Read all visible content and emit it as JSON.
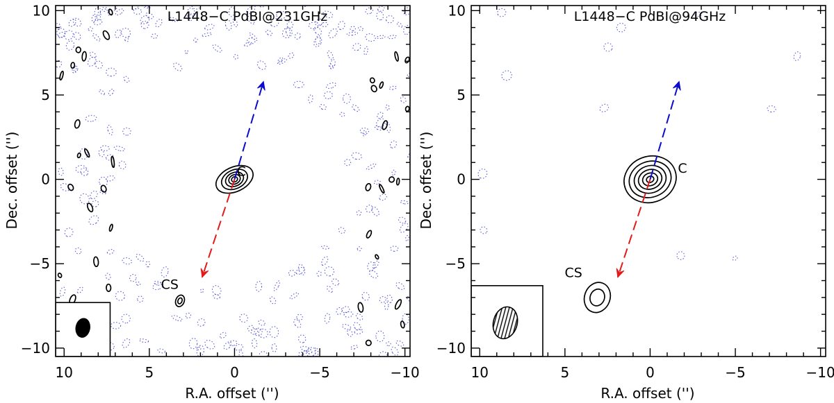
{
  "chart_data": [
    {
      "type": "contour",
      "title": "L1448−C PdBI@231GHz",
      "xlabel": "R.A. offset ('')",
      "ylabel": "Dec. offset ('')",
      "xlim": [
        10.5,
        -10.3
      ],
      "ylim": [
        -10.5,
        10.3
      ],
      "xticks": [
        10,
        5,
        0,
        -5,
        -10
      ],
      "xtick_labels": [
        "10",
        "5",
        "0",
        "−5",
        "−10"
      ],
      "yticks": [
        -10,
        -5,
        0,
        5,
        10
      ],
      "ytick_labels": [
        "−10",
        "−5",
        "0",
        "5",
        "10"
      ],
      "sources": [
        {
          "name": "C",
          "label_x": -0.4,
          "label_y": 0.2,
          "x": 0.0,
          "y": 0.0,
          "contours": [
            {
              "rx": 1.15,
              "ry": 0.72,
              "angle": -25
            },
            {
              "rx": 0.8,
              "ry": 0.55,
              "angle": -25
            },
            {
              "rx": 0.55,
              "ry": 0.4,
              "angle": -25
            },
            {
              "rx": 0.35,
              "ry": 0.27,
              "angle": -25
            },
            {
              "rx": 0.18,
              "ry": 0.15,
              "angle": -25
            }
          ]
        },
        {
          "name": "CS",
          "label_x": 3.8,
          "label_y": -6.5,
          "x": 3.2,
          "y": -7.2,
          "contours": [
            {
              "rx": 0.25,
              "ry": 0.35,
              "angle": 20
            },
            {
              "rx": 0.12,
              "ry": 0.18,
              "angle": 20
            }
          ]
        }
      ],
      "outflow": {
        "blue": {
          "from": [
            0,
            0
          ],
          "to": [
            -1.7,
            5.8
          ],
          "color": "#0a0ad0"
        },
        "red": {
          "from": [
            0,
            0
          ],
          "to": [
            1.9,
            -5.8
          ],
          "color": "#e21a1a"
        }
      },
      "beam": {
        "rx": 0.4,
        "ry": 0.55,
        "angle": 10,
        "x": 8.9,
        "y": -8.8,
        "hatched": false,
        "box": [
          10.5,
          7.3,
          -10.5,
          -7.3
        ]
      },
      "noise_density": "high"
    },
    {
      "type": "contour",
      "title": "L1448−C PdBI@94GHz",
      "xlabel": "R.A. offset ('')",
      "ylabel": "Dec. offset ('')",
      "xlim": [
        10.5,
        -10.3
      ],
      "ylim": [
        -10.5,
        10.3
      ],
      "xticks": [
        10,
        5,
        0,
        -5,
        -10
      ],
      "xtick_labels": [
        "10",
        "5",
        "0",
        "−5",
        "−10"
      ],
      "yticks": [
        -10,
        -5,
        0,
        5,
        10
      ],
      "ytick_labels": [
        "−10",
        "−5",
        "0",
        "5",
        "10"
      ],
      "sources": [
        {
          "name": "C",
          "label_x": -1.9,
          "label_y": 0.4,
          "x": 0.0,
          "y": 0.0,
          "contours": [
            {
              "rx": 1.55,
              "ry": 1.35,
              "angle": -20
            },
            {
              "rx": 1.25,
              "ry": 1.05,
              "angle": -20
            },
            {
              "rx": 0.95,
              "ry": 0.8,
              "angle": -20
            },
            {
              "rx": 0.7,
              "ry": 0.57,
              "angle": -20
            },
            {
              "rx": 0.45,
              "ry": 0.37,
              "angle": -20
            },
            {
              "rx": 0.22,
              "ry": 0.18,
              "angle": -20
            }
          ]
        },
        {
          "name": "CS",
          "label_x": 4.5,
          "label_y": -5.8,
          "x": 3.1,
          "y": -7.0,
          "contours": [
            {
              "rx": 0.75,
              "ry": 0.9,
              "angle": 20
            },
            {
              "rx": 0.42,
              "ry": 0.5,
              "angle": 20
            }
          ]
        }
      ],
      "outflow": {
        "blue": {
          "from": [
            0,
            0
          ],
          "to": [
            -1.7,
            5.8
          ],
          "color": "#0a0ad0"
        },
        "red": {
          "from": [
            0,
            0
          ],
          "to": [
            1.9,
            -5.8
          ],
          "color": "#e21a1a"
        }
      },
      "beam": {
        "rx": 0.7,
        "ry": 0.95,
        "angle": 15,
        "x": 8.5,
        "y": -8.5,
        "hatched": true,
        "box": [
          10.5,
          6.3,
          -10.5,
          -6.3
        ]
      },
      "noise_density": "low"
    }
  ]
}
